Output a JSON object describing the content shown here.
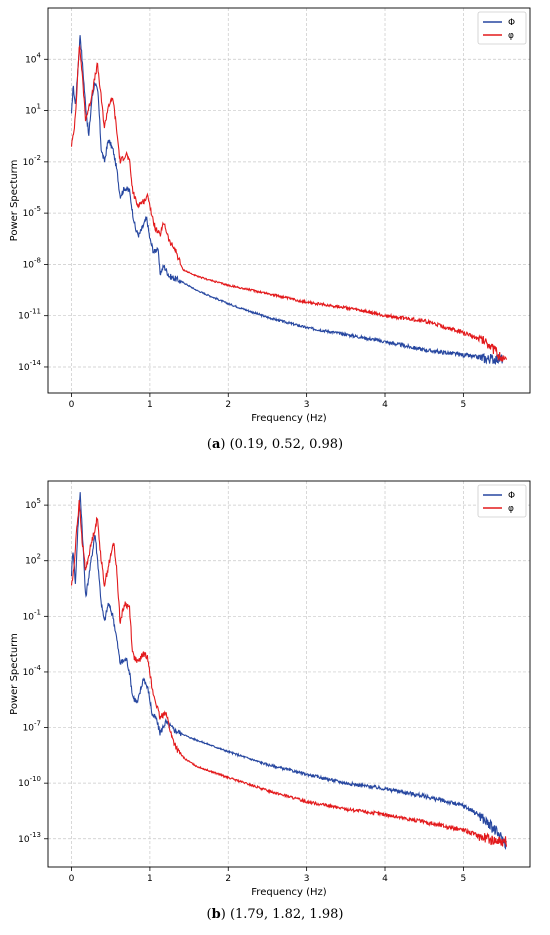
{
  "colors": {
    "phi_upper": "#2747a0",
    "phi_lower": "#e31a1c",
    "grid": "#c8c8c8"
  },
  "chart_data": [
    {
      "type": "line",
      "log_y": true,
      "xlabel": "Frequency (Hz)",
      "ylabel": "Power Specturm",
      "xlim": [
        -0.3,
        5.85
      ],
      "ylim": [
        3e-16,
        10000000.0
      ],
      "x_ticks": [
        0,
        1,
        2,
        3,
        4,
        5
      ],
      "y_ticks": [
        {
          "exp": 4,
          "value": 10000
        },
        {
          "exp": 1,
          "value": 10
        },
        {
          "exp": -2,
          "value": 0.01
        },
        {
          "exp": -5,
          "value": 1e-05
        },
        {
          "exp": -8,
          "value": 1e-08
        },
        {
          "exp": -11,
          "value": 1e-11
        },
        {
          "exp": -14,
          "value": 1e-14
        }
      ],
      "grid": true,
      "legend_position": "top-right",
      "caption_label": "a",
      "caption_values": "(0.19, 0.52, 0.98)",
      "series": [
        {
          "name": "Φ",
          "color": "#2747a0",
          "points": [
            [
              0.0,
              5
            ],
            [
              0.02,
              300
            ],
            [
              0.05,
              20
            ],
            [
              0.08,
              2000
            ],
            [
              0.11,
              300000
            ],
            [
              0.14,
              5000
            ],
            [
              0.18,
              20
            ],
            [
              0.22,
              0.3
            ],
            [
              0.26,
              50
            ],
            [
              0.3,
              500
            ],
            [
              0.34,
              80
            ],
            [
              0.38,
              0.05
            ],
            [
              0.42,
              0.01
            ],
            [
              0.47,
              0.2
            ],
            [
              0.53,
              0.05
            ],
            [
              0.58,
              0.003
            ],
            [
              0.62,
              0.0001
            ],
            [
              0.68,
              0.0003
            ],
            [
              0.74,
              0.0002
            ],
            [
              0.78,
              1e-05
            ],
            [
              0.82,
              1e-06
            ],
            [
              0.86,
              5e-07
            ],
            [
              0.92,
              2e-06
            ],
            [
              0.96,
              5e-06
            ],
            [
              1.0,
              3e-07
            ],
            [
              1.05,
              5e-08
            ],
            [
              1.1,
              1e-07
            ],
            [
              1.13,
              3e-09
            ],
            [
              1.18,
              8e-09
            ],
            [
              1.25,
              2e-09
            ],
            [
              1.32,
              1.5e-09
            ],
            [
              1.42,
              9e-10
            ],
            [
              1.6,
              3e-10
            ],
            [
              2.0,
              5e-11
            ],
            [
              2.5,
              8e-12
            ],
            [
              3.0,
              2e-12
            ],
            [
              3.5,
              8e-13
            ],
            [
              4.0,
              3e-13
            ],
            [
              4.5,
              1e-13
            ],
            [
              5.0,
              5e-14
            ],
            [
              5.3,
              3e-14
            ],
            [
              5.5,
              3e-14
            ]
          ]
        },
        {
          "name": "φ",
          "color": "#e31a1c",
          "points": [
            [
              0.0,
              0.1
            ],
            [
              0.03,
              0.5
            ],
            [
              0.06,
              30
            ],
            [
              0.1,
              80000
            ],
            [
              0.13,
              3000
            ],
            [
              0.18,
              3
            ],
            [
              0.24,
              30
            ],
            [
              0.33,
              5000
            ],
            [
              0.38,
              50
            ],
            [
              0.42,
              1
            ],
            [
              0.47,
              20
            ],
            [
              0.53,
              50
            ],
            [
              0.58,
              0.5
            ],
            [
              0.62,
              0.01
            ],
            [
              0.7,
              0.03
            ],
            [
              0.74,
              0.01
            ],
            [
              0.78,
              0.0002
            ],
            [
              0.84,
              3e-05
            ],
            [
              0.92,
              5e-05
            ],
            [
              0.98,
              0.0001
            ],
            [
              1.03,
              5e-06
            ],
            [
              1.08,
              1e-06
            ],
            [
              1.13,
              5e-07
            ],
            [
              1.18,
              3e-06
            ],
            [
              1.25,
              2e-07
            ],
            [
              1.32,
              8e-08
            ],
            [
              1.42,
              5e-09
            ],
            [
              1.6,
              2e-09
            ],
            [
              2.0,
              6e-10
            ],
            [
              2.5,
              2e-10
            ],
            [
              3.0,
              6e-11
            ],
            [
              3.5,
              3e-11
            ],
            [
              4.0,
              1e-11
            ],
            [
              4.5,
              5e-12
            ],
            [
              5.0,
              1e-12
            ],
            [
              5.3,
              3e-13
            ],
            [
              5.45,
              5e-14
            ],
            [
              5.55,
              2e-14
            ]
          ]
        }
      ]
    },
    {
      "type": "line",
      "log_y": true,
      "xlabel": "Frequency (Hz)",
      "ylabel": "Power Specturm",
      "xlim": [
        -0.3,
        5.85
      ],
      "ylim": [
        3e-15,
        2000000.0
      ],
      "x_ticks": [
        0,
        1,
        2,
        3,
        4,
        5
      ],
      "y_ticks": [
        {
          "exp": 5,
          "value": 100000
        },
        {
          "exp": 2,
          "value": 100
        },
        {
          "exp": -1,
          "value": 0.1
        },
        {
          "exp": -4,
          "value": 0.0001
        },
        {
          "exp": -7,
          "value": 1e-07
        },
        {
          "exp": -10,
          "value": 1e-10
        },
        {
          "exp": -13,
          "value": 1e-13
        }
      ],
      "grid": true,
      "legend_position": "top-right",
      "caption_label": "b",
      "caption_values": "(1.79, 1.82, 1.98)",
      "series": [
        {
          "name": "Φ",
          "color": "#2747a0",
          "points": [
            [
              0.0,
              20
            ],
            [
              0.02,
              500
            ],
            [
              0.05,
              5
            ],
            [
              0.08,
              5000
            ],
            [
              0.11,
              500000
            ],
            [
              0.14,
              3000
            ],
            [
              0.18,
              1
            ],
            [
              0.24,
              50
            ],
            [
              0.3,
              3000
            ],
            [
              0.34,
              50
            ],
            [
              0.38,
              0.5
            ],
            [
              0.42,
              0.05
            ],
            [
              0.47,
              0.5
            ],
            [
              0.53,
              0.1
            ],
            [
              0.58,
              0.005
            ],
            [
              0.62,
              0.0003
            ],
            [
              0.7,
              0.0005
            ],
            [
              0.74,
              0.0001
            ],
            [
              0.78,
              5e-06
            ],
            [
              0.84,
              2e-06
            ],
            [
              0.92,
              5e-05
            ],
            [
              0.98,
              1e-05
            ],
            [
              1.03,
              5e-07
            ],
            [
              1.08,
              3e-07
            ],
            [
              1.13,
              5e-08
            ],
            [
              1.2,
              2e-07
            ],
            [
              1.3,
              8e-08
            ],
            [
              1.5,
              3e-08
            ],
            [
              2.0,
              5e-09
            ],
            [
              2.5,
              1e-09
            ],
            [
              3.0,
              3e-10
            ],
            [
              3.5,
              1e-10
            ],
            [
              4.0,
              5e-11
            ],
            [
              4.5,
              2e-11
            ],
            [
              5.0,
              6e-12
            ],
            [
              5.2,
              2e-12
            ],
            [
              5.4,
              3e-13
            ],
            [
              5.55,
              5e-14
            ]
          ]
        },
        {
          "name": "φ",
          "color": "#e31a1c",
          "points": [
            [
              0.0,
              5
            ],
            [
              0.03,
              30
            ],
            [
              0.06,
              3000
            ],
            [
              0.1,
              150000
            ],
            [
              0.13,
              2000
            ],
            [
              0.18,
              30
            ],
            [
              0.24,
              500
            ],
            [
              0.33,
              20000
            ],
            [
              0.38,
              100
            ],
            [
              0.42,
              5
            ],
            [
              0.47,
              50
            ],
            [
              0.54,
              1000
            ],
            [
              0.58,
              20
            ],
            [
              0.62,
              0.05
            ],
            [
              0.68,
              0.5
            ],
            [
              0.74,
              0.3
            ],
            [
              0.78,
              0.001
            ],
            [
              0.84,
              0.0003
            ],
            [
              0.92,
              0.001
            ],
            [
              0.98,
              0.0005
            ],
            [
              1.03,
              1e-05
            ],
            [
              1.08,
              2e-06
            ],
            [
              1.13,
              3e-07
            ],
            [
              1.2,
              8e-07
            ],
            [
              1.28,
              3e-08
            ],
            [
              1.36,
              5e-09
            ],
            [
              1.45,
              2e-09
            ],
            [
              1.6,
              8e-10
            ],
            [
              2.0,
              2e-10
            ],
            [
              2.5,
              4e-11
            ],
            [
              3.0,
              1e-11
            ],
            [
              3.5,
              4e-12
            ],
            [
              4.0,
              2e-12
            ],
            [
              4.5,
              8e-13
            ],
            [
              5.0,
              3e-13
            ],
            [
              5.3,
              1e-13
            ],
            [
              5.55,
              7e-14
            ]
          ]
        }
      ]
    }
  ]
}
